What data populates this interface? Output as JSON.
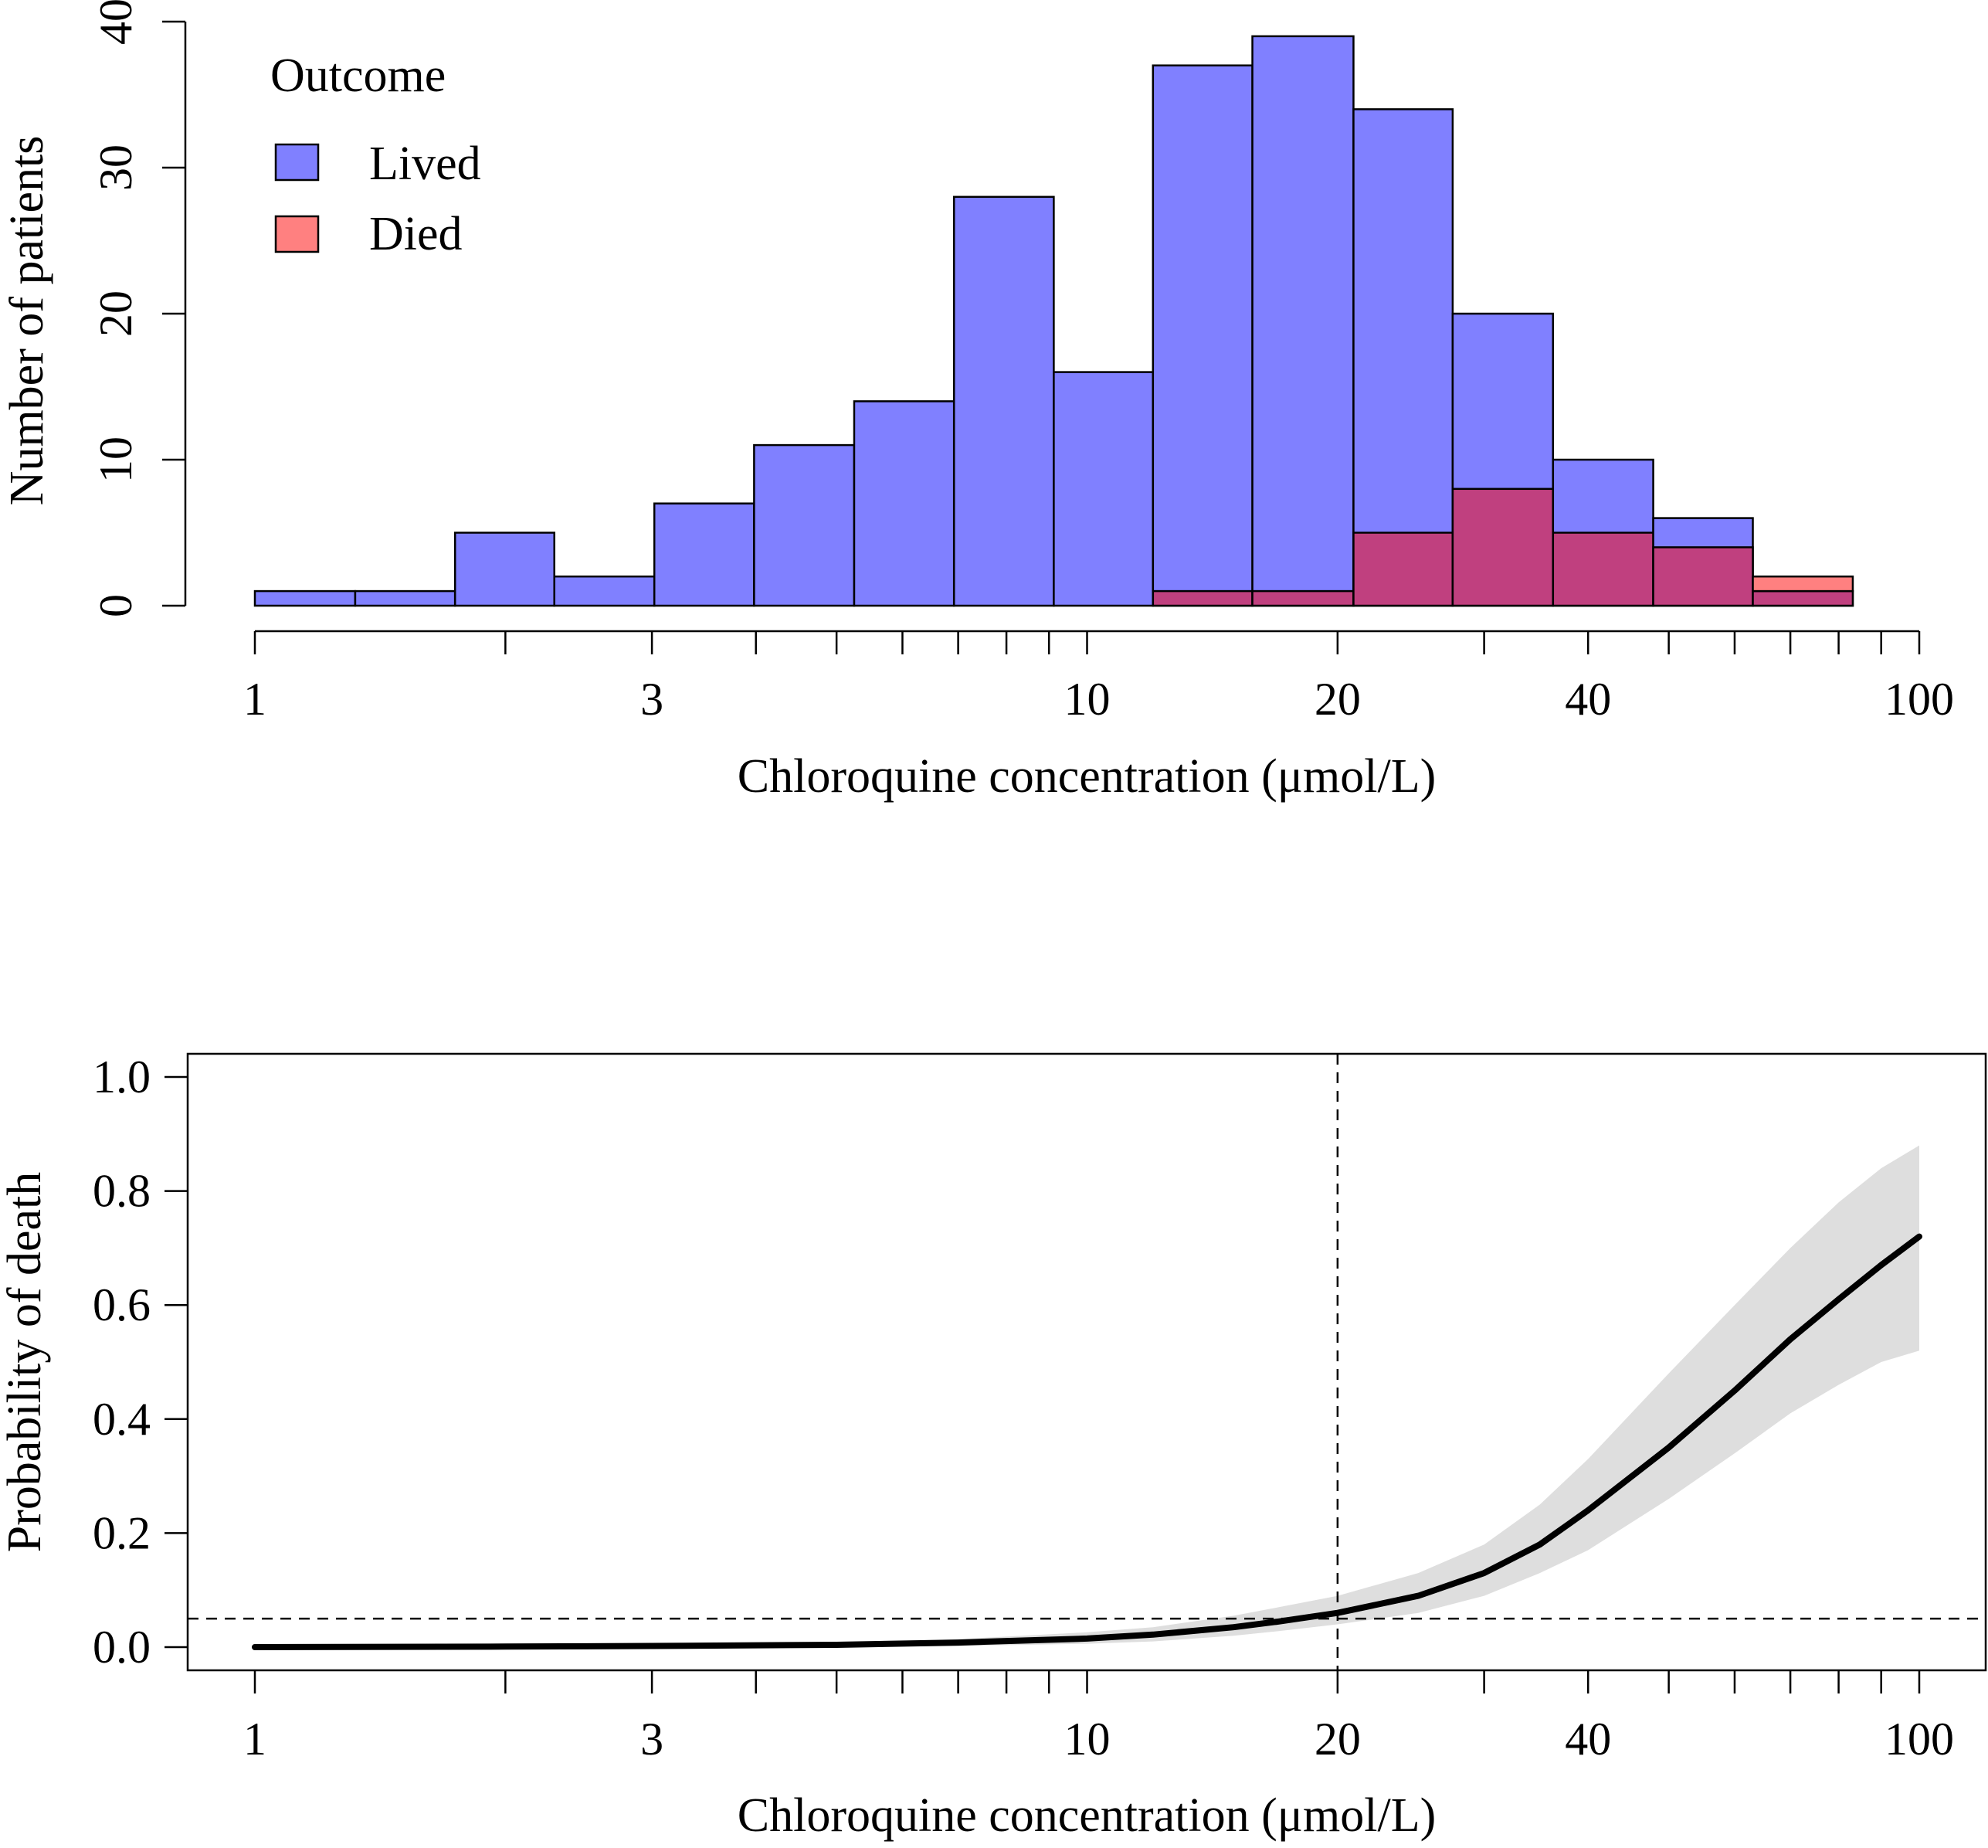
{
  "chart_data": [
    {
      "type": "bar",
      "subtype": "histogram",
      "xlabel": "Chloroquine concentration (μmol/L)",
      "ylabel": "Number of patients",
      "xscale": "log",
      "x_ticks": [
        1,
        2,
        3,
        4,
        5,
        6,
        7,
        8,
        9,
        10,
        20,
        30,
        40,
        50,
        60,
        70,
        80,
        90,
        100
      ],
      "x_tick_labels": [
        "1",
        "3",
        "10",
        "20",
        "40",
        "100"
      ],
      "x_tick_label_values": [
        1,
        3,
        10,
        20,
        40,
        100
      ],
      "xlim": [
        1,
        100
      ],
      "ylim": [
        0,
        40
      ],
      "y_ticks": [
        0,
        10,
        20,
        30,
        40
      ],
      "y_tick_labels": [
        "0",
        "10",
        "20",
        "30",
        "40"
      ],
      "bin_edges": [
        1.0,
        1.32,
        1.74,
        2.29,
        3.02,
        3.98,
        5.25,
        6.92,
        9.12,
        12.0,
        15.8,
        20.9,
        27.5,
        36.3,
        47.9,
        63.1,
        83.2,
        100.0
      ],
      "legend": {
        "title": "Outcome",
        "position": "top-left"
      },
      "series": [
        {
          "name": "Lived",
          "color": "#8080FF",
          "values": [
            1,
            1,
            5,
            2,
            7,
            11,
            14,
            28,
            16,
            37,
            39,
            34,
            20,
            10,
            6,
            1
          ]
        },
        {
          "name": "Died",
          "color": "#FF8080",
          "overlap_color": "#C0407F",
          "values": [
            0,
            0,
            0,
            0,
            0,
            0,
            0,
            0,
            0,
            1,
            1,
            5,
            8,
            5,
            4,
            2
          ]
        }
      ]
    },
    {
      "type": "line",
      "xlabel": "Chloroquine concentration (μmol/L)",
      "ylabel": "Probability of death",
      "xscale": "log",
      "x_ticks": [
        1,
        2,
        3,
        4,
        5,
        6,
        7,
        8,
        9,
        10,
        20,
        30,
        40,
        50,
        60,
        70,
        80,
        90,
        100
      ],
      "x_tick_labels": [
        "1",
        "3",
        "10",
        "20",
        "40",
        "100"
      ],
      "x_tick_label_values": [
        1,
        3,
        10,
        20,
        40,
        100
      ],
      "xlim": [
        1,
        100
      ],
      "ylim": [
        0,
        1
      ],
      "y_ticks": [
        0,
        0.2,
        0.4,
        0.6,
        0.8,
        1.0
      ],
      "y_tick_labels": [
        "0.0",
        "0.2",
        "0.4",
        "0.6",
        "0.8",
        "1.0"
      ],
      "reference_lines": [
        {
          "axis": "x",
          "value": 20,
          "style": "dashed"
        },
        {
          "axis": "y",
          "value": 0.05,
          "style": "dashed"
        }
      ],
      "series": [
        {
          "color": "#000000",
          "band_color": "#DEDEDE",
          "x": [
            1,
            2,
            3,
            5,
            7,
            10,
            12,
            15,
            17,
            20,
            25,
            30,
            35,
            40,
            50,
            60,
            70,
            80,
            90,
            100
          ],
          "y": [
            0.0,
            0.001,
            0.002,
            0.004,
            0.008,
            0.015,
            0.022,
            0.035,
            0.045,
            0.06,
            0.09,
            0.13,
            0.18,
            0.24,
            0.35,
            0.45,
            0.54,
            0.61,
            0.67,
            0.72
          ],
          "lower": [
            0.0,
            0.0,
            0.0,
            0.001,
            0.002,
            0.006,
            0.01,
            0.02,
            0.028,
            0.04,
            0.06,
            0.09,
            0.13,
            0.17,
            0.26,
            0.34,
            0.41,
            0.46,
            0.5,
            0.52
          ],
          "upper": [
            0.0,
            0.002,
            0.004,
            0.008,
            0.014,
            0.026,
            0.035,
            0.055,
            0.07,
            0.09,
            0.13,
            0.18,
            0.25,
            0.33,
            0.48,
            0.6,
            0.7,
            0.78,
            0.84,
            0.88
          ]
        }
      ]
    }
  ]
}
